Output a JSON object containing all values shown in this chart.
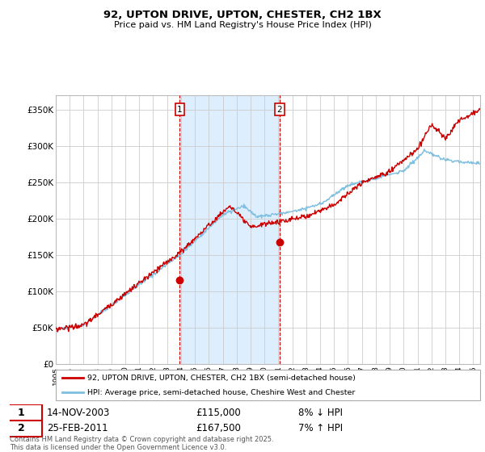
{
  "title": "92, UPTON DRIVE, UPTON, CHESTER, CH2 1BX",
  "subtitle": "Price paid vs. HM Land Registry's House Price Index (HPI)",
  "ylabel_ticks": [
    "£0",
    "£50K",
    "£100K",
    "£150K",
    "£200K",
    "£250K",
    "£300K",
    "£350K"
  ],
  "ytick_values": [
    0,
    50000,
    100000,
    150000,
    200000,
    250000,
    300000,
    350000
  ],
  "ylim": [
    0,
    370000
  ],
  "xlim_start": 1995.0,
  "xlim_end": 2025.5,
  "t1_x": 2003.917,
  "t2_x": 2011.083,
  "t1_y": 115000,
  "t2_y": 167500,
  "transaction1": {
    "label_display": "14-NOV-2003",
    "price": "£115,000",
    "hpi_info": "8% ↓ HPI"
  },
  "transaction2": {
    "label_display": "25-FEB-2011",
    "price": "£167,500",
    "hpi_info": "7% ↑ HPI"
  },
  "legend_line1": "92, UPTON DRIVE, UPTON, CHESTER, CH2 1BX (semi-detached house)",
  "legend_line2": "HPI: Average price, semi-detached house, Cheshire West and Chester",
  "footer": "Contains HM Land Registry data © Crown copyright and database right 2025.\nThis data is licensed under the Open Government Licence v3.0.",
  "hpi_color": "#7fbfdf",
  "price_color": "#cc0000",
  "shade_color": "#ddeeff",
  "grid_color": "#cccccc",
  "xtick_years": [
    1995,
    1996,
    1997,
    1998,
    1999,
    2000,
    2001,
    2002,
    2003,
    2004,
    2005,
    2006,
    2007,
    2008,
    2009,
    2010,
    2011,
    2012,
    2013,
    2014,
    2015,
    2016,
    2017,
    2018,
    2019,
    2020,
    2021,
    2022,
    2023,
    2024,
    2025
  ]
}
